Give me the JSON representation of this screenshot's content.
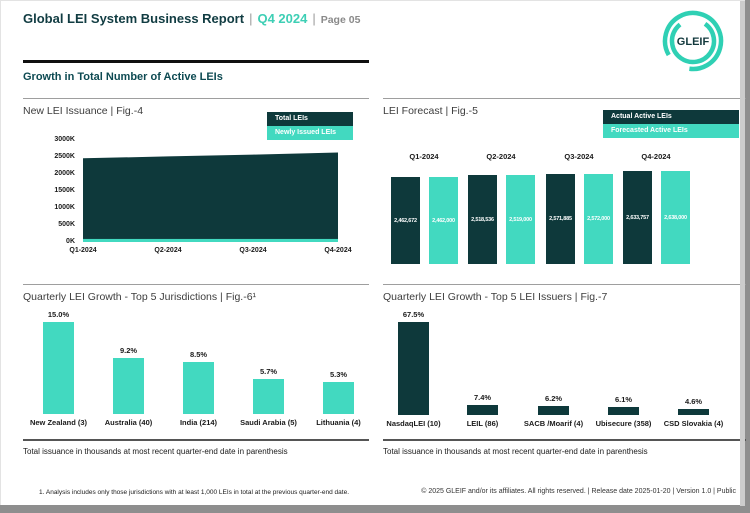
{
  "page": {
    "header": {
      "title": "Global LEI System Business Report",
      "sep": "|",
      "period": "Q4 2024",
      "page_label": "Page 05"
    },
    "logo_text": "GLEIF",
    "section_title": "Growth in Total Number of Active LEIs",
    "footnote": "1. Analysis includes only those jurisdictions with at least 1,000 LEIs in total at the previous quarter-end date.",
    "footer": "© 2025 GLEIF and/or its affiliates. All rights reserved. | Release date 2025-01-20 | Version 1.0 | Public"
  },
  "theme": {
    "dark_teal": "#0e393b",
    "turquoise": "#42d9c0",
    "logo_teal": "#2fd0b4"
  },
  "chart_data": [
    {
      "id": "fig4",
      "type": "area",
      "title": "New LEI Issuance | Fig.-4",
      "legend": [
        {
          "label": "Total LEIs",
          "color": "dark"
        },
        {
          "label": "Newly Issued LEIs",
          "color": "turquoise"
        }
      ],
      "categories": [
        "Q1-2024",
        "Q2-2024",
        "Q3-2024",
        "Q4-2024"
      ],
      "series": [
        {
          "name": "Total LEIs",
          "values": [
            2462672,
            2518536,
            2571885,
            2633757
          ]
        },
        {
          "name": "Newly Issued LEIs",
          "values": [
            90000,
            90000,
            90000,
            90000
          ]
        }
      ],
      "ytick_labels": [
        "0K",
        "500K",
        "1000K",
        "1500K",
        "2000K",
        "2500K",
        "3000K"
      ],
      "ylim": [
        0,
        3000000
      ],
      "grid": false,
      "legend_position": "top-right"
    },
    {
      "id": "fig5",
      "type": "bar",
      "title": "LEI Forecast | Fig.-5",
      "legend": [
        {
          "label": "Actual Active LEIs",
          "color": "dark"
        },
        {
          "label": "Forecasted Active LEIs",
          "color": "turquoise"
        }
      ],
      "categories": [
        "Q1-2024",
        "Q2-2024",
        "Q3-2024",
        "Q4-2024"
      ],
      "series": [
        {
          "name": "Actual Active LEIs",
          "values": [
            2462672,
            2518536,
            2571885,
            2633757
          ],
          "labels": [
            "2,462,672",
            "2,518,536",
            "2,571,885",
            "2,633,757"
          ]
        },
        {
          "name": "Forecasted Active LEIs",
          "values": [
            2462000,
            2519000,
            2572000,
            2638000
          ],
          "labels": [
            "2,462,000",
            "2,519,000",
            "2,572,000",
            "2,638,000"
          ]
        }
      ],
      "ylim": [
        0,
        2700000
      ],
      "grid": false,
      "legend_position": "top-right"
    },
    {
      "id": "fig6",
      "type": "bar",
      "title": "Quarterly LEI Growth - Top 5 Jurisdictions | Fig.-6¹",
      "categories": [
        "New Zealand (3)",
        "Australia (40)",
        "India (214)",
        "Saudi Arabia (5)",
        "Lithuania (4)"
      ],
      "values": [
        15.0,
        9.2,
        8.5,
        5.7,
        5.3
      ],
      "value_labels": [
        "15.0%",
        "9.2%",
        "8.5%",
        "5.7%",
        "5.3%"
      ],
      "bar_color": "turquoise",
      "note": "Total issuance in thousands at most recent quarter-end date in parenthesis",
      "ylim": [
        0,
        16
      ],
      "grid": false
    },
    {
      "id": "fig7",
      "type": "bar",
      "title": "Quarterly LEI Growth - Top 5 LEI Issuers | Fig.-7",
      "categories": [
        "NasdaqLEI (10)",
        "LEIL (86)",
        "SACB /Moarif (4)",
        "Ubisecure (358)",
        "CSD Slovakia (4)"
      ],
      "values": [
        67.5,
        7.4,
        6.2,
        6.1,
        4.6
      ],
      "value_labels": [
        "67.5%",
        "7.4%",
        "6.2%",
        "6.1%",
        "4.6%"
      ],
      "bar_color": "dark",
      "note": "Total issuance in thousands at most recent quarter-end date in parenthesis",
      "ylim": [
        0,
        72
      ],
      "grid": false
    }
  ]
}
